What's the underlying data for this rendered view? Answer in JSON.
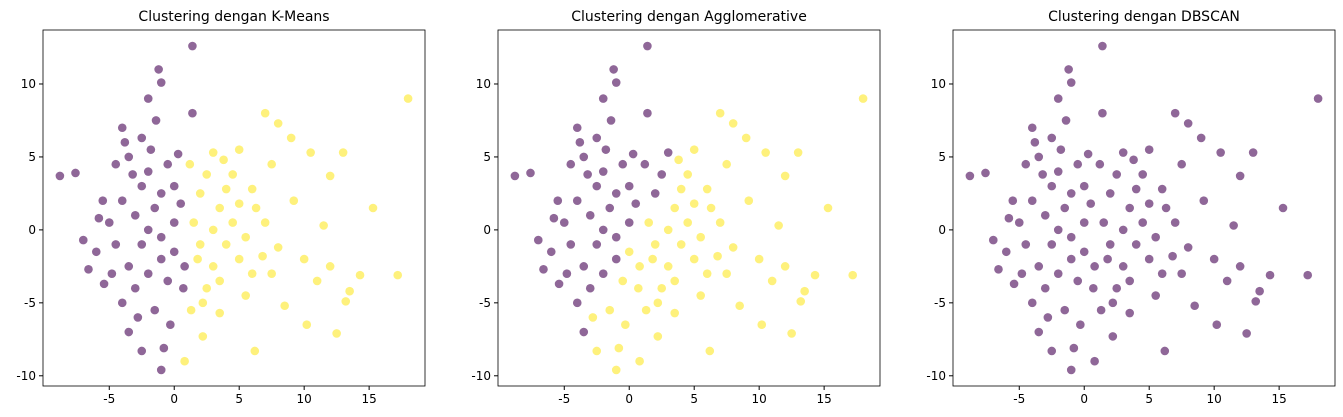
{
  "chart_data": [
    {
      "type": "scatter",
      "title": "Clustering dengan K-Means",
      "x": [
        -8.8,
        -7.6,
        -7.0,
        -6.6,
        -5.4,
        1.4,
        -1.2,
        -1.0,
        -2.0,
        1.4,
        -1.4,
        -4.0,
        -3.8,
        -2.5,
        7.0,
        8.0,
        18.0,
        10.5,
        13.0,
        15.3,
        17.2,
        14.3,
        13.5,
        13.2,
        12.5,
        10.2,
        6.2,
        2.2,
        -0.8,
        -1.0,
        -2.5,
        -3.5,
        0.8,
        3.5,
        8.5,
        11.0,
        12.0,
        9.2,
        11.5,
        12.0,
        7.5,
        9.0,
        5.0,
        3.0,
        4.5,
        6.3,
        8.0,
        10.0,
        7.5,
        5.5,
        -5,
        -4.5,
        -4,
        -3.5,
        -3,
        -3,
        -2.5,
        -2.5,
        -2,
        -2,
        -2,
        -1.5,
        -1.5,
        -1,
        -1,
        -1,
        -0.5,
        -0.5,
        0,
        0,
        0,
        0.3,
        -4.5,
        -5.5,
        -6,
        -4,
        -3.5,
        -2.8,
        -0.3,
        0.5,
        0.7,
        0.8,
        -1.8,
        -3.2,
        -4.8,
        -5.8,
        1.5,
        1.8,
        2,
        2,
        2.5,
        2.5,
        3,
        3,
        3.5,
        3.5,
        4,
        4,
        4.5,
        5,
        5,
        5.5,
        6,
        6,
        1.2,
        1.3,
        2.2,
        3.8,
        7,
        6.8
      ],
      "values": [
        3.7,
        3.9,
        -0.7,
        -2.7,
        -3.7,
        12.6,
        11.0,
        10.1,
        9.0,
        8.0,
        7.5,
        7.0,
        6.0,
        6.3,
        8.0,
        7.3,
        9.0,
        5.3,
        5.3,
        1.5,
        -3.1,
        -3.1,
        -4.2,
        -4.9,
        -7.1,
        -6.5,
        -8.3,
        -7.3,
        -8.1,
        -9.6,
        -8.3,
        -7.0,
        -9.0,
        -5.7,
        -5.2,
        -3.5,
        -2.5,
        2.0,
        0.3,
        3.7,
        4.5,
        6.3,
        5.5,
        5.3,
        3.8,
        1.5,
        -1.2,
        -2.0,
        -3.0,
        -4.5,
        0.5,
        -1,
        2,
        -2.5,
        1,
        -4,
        3,
        -1,
        0,
        4,
        -3,
        1.5,
        -5.5,
        -2,
        2.5,
        -0.5,
        4.5,
        -3.5,
        0.5,
        -1.5,
        3,
        5.2,
        4.5,
        2,
        -1.5,
        -5,
        5,
        -6,
        -6.5,
        1.8,
        -4,
        -2.5,
        5.5,
        3.8,
        -3,
        0.8,
        0.5,
        -2,
        2.5,
        -1,
        -4,
        3.8,
        0,
        -2.5,
        1.5,
        -3.5,
        -1,
        2.8,
        0.5,
        -2,
        1.8,
        -0.5,
        2.8,
        -3,
        4.5,
        -5.5,
        -5,
        4.8,
        0.5,
        -1.8
      ],
      "cluster": [
        0,
        0,
        0,
        0,
        0,
        0,
        0,
        0,
        0,
        0,
        0,
        0,
        0,
        0,
        1,
        1,
        1,
        1,
        1,
        1,
        1,
        1,
        1,
        1,
        1,
        1,
        1,
        1,
        0,
        0,
        0,
        0,
        1,
        1,
        1,
        1,
        1,
        1,
        1,
        1,
        1,
        1,
        1,
        1,
        1,
        1,
        1,
        1,
        1,
        1,
        0,
        0,
        0,
        0,
        0,
        0,
        0,
        0,
        0,
        0,
        0,
        0,
        0,
        0,
        0,
        0,
        0,
        0,
        0,
        0,
        0,
        0,
        0,
        0,
        0,
        0,
        0,
        0,
        0,
        0,
        0,
        0,
        0,
        0,
        0,
        0,
        1,
        1,
        1,
        1,
        1,
        1,
        1,
        1,
        1,
        1,
        1,
        1,
        1,
        1,
        1,
        1,
        1,
        1,
        1,
        1,
        1,
        1,
        1,
        1
      ],
      "palette": [
        "#440154",
        "#fde725"
      ],
      "alpha": 0.6,
      "xlim": [
        -10.1,
        19.3
      ],
      "ylim": [
        -10.7,
        13.7
      ],
      "xticks": [
        -5,
        0,
        5,
        10,
        15
      ],
      "yticks": [
        -10,
        -5,
        0,
        5,
        10
      ],
      "grid": false
    },
    {
      "type": "scatter",
      "title": "Clustering dengan Agglomerative",
      "x": [
        -8.8,
        -7.6,
        -7.0,
        -6.6,
        -5.4,
        1.4,
        -1.2,
        -1.0,
        -2.0,
        1.4,
        -1.4,
        -4.0,
        -3.8,
        -2.5,
        7.0,
        8.0,
        18.0,
        10.5,
        13.0,
        15.3,
        17.2,
        14.3,
        13.5,
        13.2,
        12.5,
        10.2,
        6.2,
        2.2,
        -0.8,
        -1.0,
        -2.5,
        -3.5,
        0.8,
        3.5,
        8.5,
        11.0,
        12.0,
        9.2,
        11.5,
        12.0,
        7.5,
        9.0,
        5.0,
        3.0,
        4.5,
        6.3,
        8.0,
        10.0,
        7.5,
        5.5,
        -5,
        -4.5,
        -4,
        -3.5,
        -3,
        -3,
        -2.5,
        -2.5,
        -2,
        -2,
        -2,
        -1.5,
        -1.5,
        -1,
        -1,
        -1,
        -0.5,
        -0.5,
        0,
        0,
        0,
        0.3,
        -4.5,
        -5.5,
        -6,
        -4,
        -3.5,
        -2.8,
        -0.3,
        0.5,
        0.7,
        0.8,
        -1.8,
        -3.2,
        -4.8,
        -5.8,
        1.5,
        1.8,
        2,
        2,
        2.5,
        2.5,
        3,
        3,
        3.5,
        3.5,
        4,
        4,
        4.5,
        5,
        5,
        5.5,
        6,
        6,
        1.2,
        1.3,
        2.2,
        3.8,
        7,
        6.8
      ],
      "values": [
        3.7,
        3.9,
        -0.7,
        -2.7,
        -3.7,
        12.6,
        11.0,
        10.1,
        9.0,
        8.0,
        7.5,
        7.0,
        6.0,
        6.3,
        8.0,
        7.3,
        9.0,
        5.3,
        5.3,
        1.5,
        -3.1,
        -3.1,
        -4.2,
        -4.9,
        -7.1,
        -6.5,
        -8.3,
        -7.3,
        -8.1,
        -9.6,
        -8.3,
        -7.0,
        -9.0,
        -5.7,
        -5.2,
        -3.5,
        -2.5,
        2.0,
        0.3,
        3.7,
        4.5,
        6.3,
        5.5,
        5.3,
        3.8,
        1.5,
        -1.2,
        -2.0,
        -3.0,
        -4.5,
        0.5,
        -1,
        2,
        -2.5,
        1,
        -4,
        3,
        -1,
        0,
        4,
        -3,
        1.5,
        -5.5,
        -2,
        2.5,
        -0.5,
        4.5,
        -3.5,
        0.5,
        -1.5,
        3,
        5.2,
        4.5,
        2,
        -1.5,
        -5,
        5,
        -6,
        -6.5,
        1.8,
        -4,
        -2.5,
        5.5,
        3.8,
        -3,
        0.8,
        0.5,
        -2,
        2.5,
        -1,
        -4,
        3.8,
        0,
        -2.5,
        1.5,
        -3.5,
        -1,
        2.8,
        0.5,
        -2,
        1.8,
        -0.5,
        2.8,
        -3,
        4.5,
        -5.5,
        -5,
        4.8,
        0.5,
        -1.8
      ],
      "cluster": [
        0,
        0,
        0,
        0,
        0,
        0,
        0,
        0,
        0,
        0,
        0,
        0,
        0,
        0,
        1,
        1,
        1,
        1,
        1,
        1,
        1,
        1,
        1,
        1,
        1,
        1,
        1,
        1,
        1,
        1,
        1,
        0,
        1,
        1,
        1,
        1,
        1,
        1,
        1,
        1,
        1,
        1,
        1,
        0,
        1,
        1,
        1,
        1,
        1,
        1,
        0,
        0,
        0,
        0,
        0,
        0,
        0,
        0,
        0,
        0,
        0,
        0,
        1,
        0,
        0,
        0,
        0,
        1,
        0,
        1,
        0,
        0,
        0,
        0,
        0,
        0,
        0,
        1,
        1,
        0,
        1,
        1,
        0,
        0,
        0,
        0,
        1,
        1,
        0,
        1,
        1,
        0,
        1,
        1,
        1,
        1,
        1,
        1,
        1,
        1,
        1,
        1,
        1,
        1,
        0,
        1,
        1,
        1,
        1,
        1
      ],
      "palette": [
        "#440154",
        "#fde725"
      ],
      "alpha": 0.6,
      "xlim": [
        -10.1,
        19.3
      ],
      "ylim": [
        -10.7,
        13.7
      ],
      "xticks": [
        -5,
        0,
        5,
        10,
        15
      ],
      "yticks": [
        -10,
        -5,
        0,
        5,
        10
      ],
      "grid": false
    },
    {
      "type": "scatter",
      "title": "Clustering dengan DBSCAN",
      "x": [
        -8.8,
        -7.6,
        -7.0,
        -6.6,
        -5.4,
        1.4,
        -1.2,
        -1.0,
        -2.0,
        1.4,
        -1.4,
        -4.0,
        -3.8,
        -2.5,
        7.0,
        8.0,
        18.0,
        10.5,
        13.0,
        15.3,
        17.2,
        14.3,
        13.5,
        13.2,
        12.5,
        10.2,
        6.2,
        2.2,
        -0.8,
        -1.0,
        -2.5,
        -3.5,
        0.8,
        3.5,
        8.5,
        11.0,
        12.0,
        9.2,
        11.5,
        12.0,
        7.5,
        9.0,
        5.0,
        3.0,
        4.5,
        6.3,
        8.0,
        10.0,
        7.5,
        5.5,
        -5,
        -4.5,
        -4,
        -3.5,
        -3,
        -3,
        -2.5,
        -2.5,
        -2,
        -2,
        -2,
        -1.5,
        -1.5,
        -1,
        -1,
        -1,
        -0.5,
        -0.5,
        0,
        0,
        0,
        0.3,
        -4.5,
        -5.5,
        -6,
        -4,
        -3.5,
        -2.8,
        -0.3,
        0.5,
        0.7,
        0.8,
        -1.8,
        -3.2,
        -4.8,
        -5.8,
        1.5,
        1.8,
        2,
        2,
        2.5,
        2.5,
        3,
        3,
        3.5,
        3.5,
        4,
        4,
        4.5,
        5,
        5,
        5.5,
        6,
        6,
        1.2,
        1.3,
        2.2,
        3.8,
        7,
        6.8
      ],
      "values": [
        3.7,
        3.9,
        -0.7,
        -2.7,
        -3.7,
        12.6,
        11.0,
        10.1,
        9.0,
        8.0,
        7.5,
        7.0,
        6.0,
        6.3,
        8.0,
        7.3,
        9.0,
        5.3,
        5.3,
        1.5,
        -3.1,
        -3.1,
        -4.2,
        -4.9,
        -7.1,
        -6.5,
        -8.3,
        -7.3,
        -8.1,
        -9.6,
        -8.3,
        -7.0,
        -9.0,
        -5.7,
        -5.2,
        -3.5,
        -2.5,
        2.0,
        0.3,
        3.7,
        4.5,
        6.3,
        5.5,
        5.3,
        3.8,
        1.5,
        -1.2,
        -2.0,
        -3.0,
        -4.5,
        0.5,
        -1,
        2,
        -2.5,
        1,
        -4,
        3,
        -1,
        0,
        4,
        -3,
        1.5,
        -5.5,
        -2,
        2.5,
        -0.5,
        4.5,
        -3.5,
        0.5,
        -1.5,
        3,
        5.2,
        4.5,
        2,
        -1.5,
        -5,
        5,
        -6,
        -6.5,
        1.8,
        -4,
        -2.5,
        5.5,
        3.8,
        -3,
        0.8,
        0.5,
        -2,
        2.5,
        -1,
        -4,
        3.8,
        0,
        -2.5,
        1.5,
        -3.5,
        -1,
        2.8,
        0.5,
        -2,
        1.8,
        -0.5,
        2.8,
        -3,
        4.5,
        -5.5,
        -5,
        4.8,
        0.5,
        -1.8
      ],
      "cluster": [
        0,
        0,
        0,
        0,
        0,
        0,
        0,
        0,
        0,
        0,
        0,
        0,
        0,
        0,
        0,
        0,
        0,
        0,
        0,
        0,
        0,
        0,
        0,
        0,
        0,
        0,
        0,
        0,
        0,
        0,
        0,
        0,
        0,
        0,
        0,
        0,
        0,
        0,
        0,
        0,
        0,
        0,
        0,
        0,
        0,
        0,
        0,
        0,
        0,
        0,
        0,
        0,
        0,
        0,
        0,
        0,
        0,
        0,
        0,
        0,
        0,
        0,
        0,
        0,
        0,
        0,
        0,
        0,
        0,
        0,
        0,
        0,
        0,
        0,
        0,
        0,
        0,
        0,
        0,
        0,
        0,
        0,
        0,
        0,
        0,
        0,
        0,
        0,
        0,
        0,
        0,
        0,
        0,
        0,
        0,
        0,
        0,
        0,
        0,
        0,
        0,
        0,
        0,
        0,
        0,
        0,
        0,
        0,
        0,
        0
      ],
      "palette": [
        "#440154"
      ],
      "alpha": 0.6,
      "xlim": [
        -10.1,
        19.3
      ],
      "ylim": [
        -10.7,
        13.7
      ],
      "xticks": [
        -5,
        0,
        5,
        10,
        15
      ],
      "yticks": [
        -10,
        -5,
        0,
        5,
        10
      ],
      "grid": false
    }
  ]
}
